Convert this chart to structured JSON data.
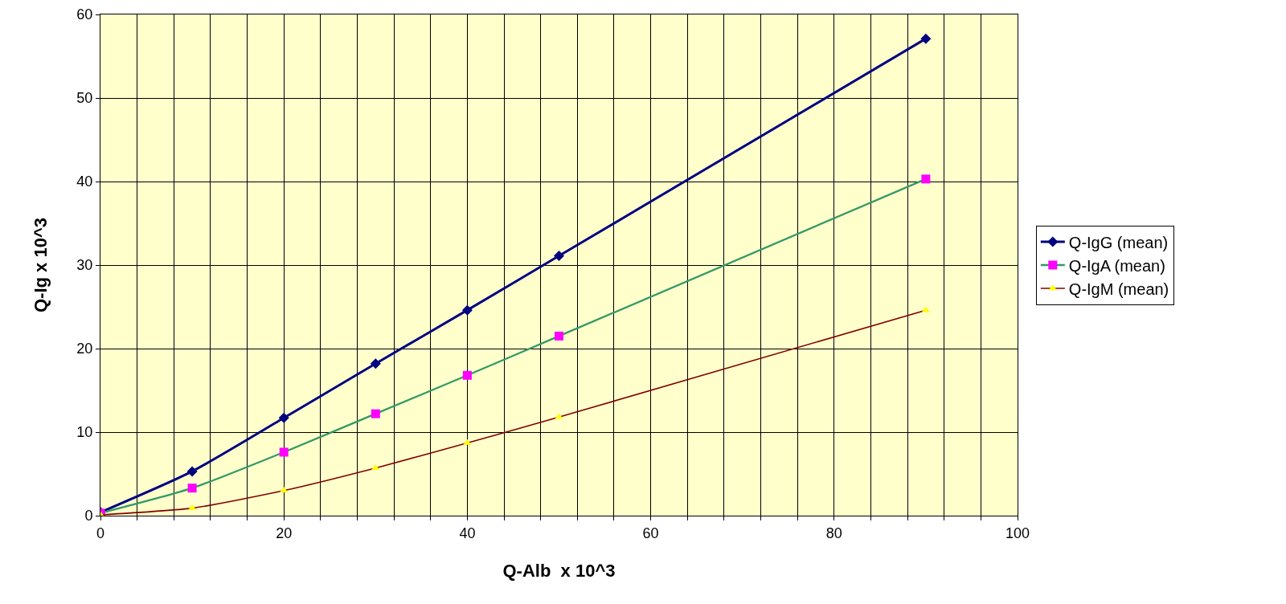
{
  "chart_data": {
    "type": "line",
    "xlabel": "Q-Alb  x 10^3",
    "ylabel": "Q-Ig x 10^3",
    "x": [
      0,
      10,
      20,
      30,
      40,
      50,
      90
    ],
    "series": [
      {
        "name": "Q-IgG (mean)",
        "color": "#000080",
        "marker": "diamond",
        "values": [
          0.4,
          5.3,
          11.7,
          18.2,
          24.6,
          31.1,
          57.1
        ]
      },
      {
        "name": "Q-IgA (mean)",
        "color": "#339966",
        "marker": "square",
        "values": [
          0.3,
          3.3,
          7.6,
          12.2,
          16.8,
          21.5,
          40.3
        ]
      },
      {
        "name": "Q-IgM (mean)",
        "color": "#800000",
        "marker": "triangle",
        "values": [
          0.1,
          0.9,
          3.0,
          5.7,
          8.7,
          11.8,
          24.6
        ]
      }
    ],
    "xlim": [
      0,
      100
    ],
    "xticks": [
      0,
      {
        "value": 4,
        "label": null
      },
      {
        "value": 8,
        "label": null
      },
      {
        "value": 12,
        "label": null
      },
      {
        "value": 16,
        "label": null
      },
      20,
      {
        "value": 24,
        "label": null
      },
      {
        "value": 28,
        "label": null
      },
      {
        "value": 32,
        "label": null
      },
      {
        "value": 36,
        "label": null
      },
      40,
      {
        "value": 44,
        "label": null
      },
      {
        "value": 48,
        "label": null
      },
      {
        "value": 52,
        "label": null
      },
      {
        "value": 56,
        "label": null
      },
      60,
      {
        "value": 64,
        "label": null
      },
      {
        "value": 68,
        "label": null
      },
      {
        "value": 72,
        "label": null
      },
      {
        "value": 76,
        "label": null
      },
      80,
      {
        "value": 84,
        "label": null
      },
      {
        "value": 88,
        "label": null
      },
      {
        "value": 92,
        "label": null
      },
      {
        "value": 96,
        "label": null
      },
      100
    ],
    "ylim": [
      0,
      60
    ],
    "yticks": [
      0,
      10,
      20,
      30,
      40,
      50,
      60
    ],
    "grid": true,
    "legend": "right"
  }
}
